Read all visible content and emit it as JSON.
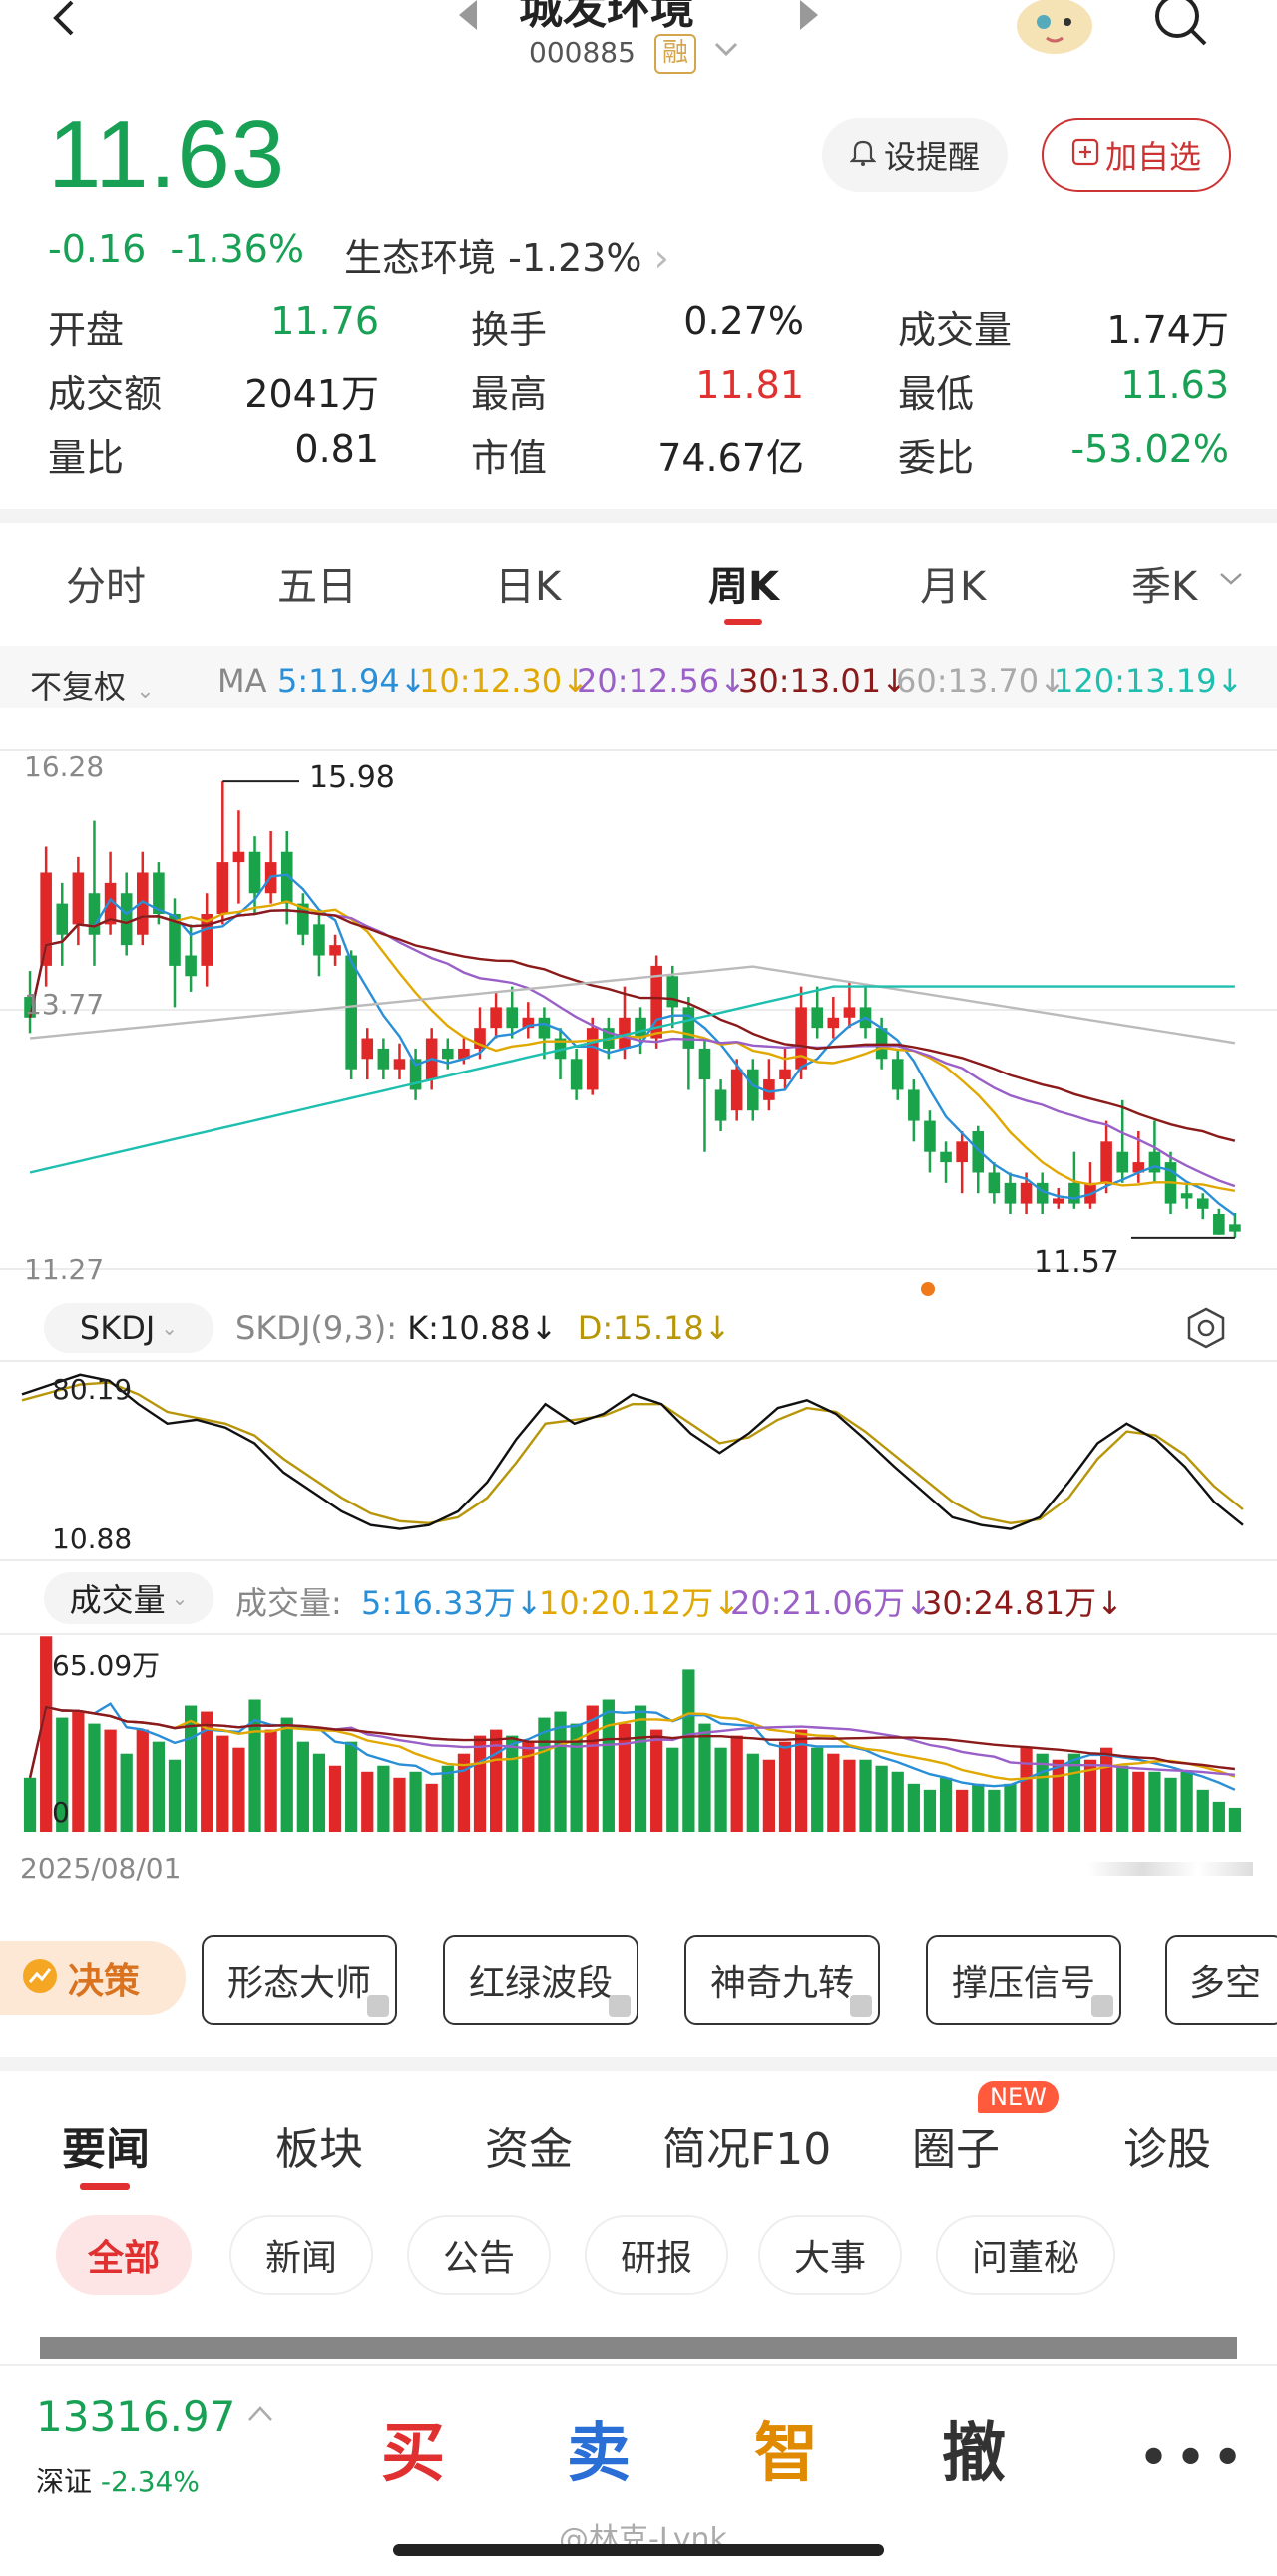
{
  "header": {
    "title": "城发环境",
    "code": "000885",
    "badge": "融"
  },
  "quote": {
    "price": "11.63",
    "change": "-0.16",
    "change_pct": "-1.36%",
    "sector_name": "生态环境",
    "sector_pct": "-1.23%",
    "remind_label": "设提醒",
    "fav_label": "加自选"
  },
  "stats": [
    {
      "label": "开盘",
      "value": "11.76",
      "color": "#18a155"
    },
    {
      "label": "换手",
      "value": "0.27%",
      "color": "#222222"
    },
    {
      "label": "成交量",
      "value": "1.74万",
      "color": "#222222"
    },
    {
      "label": "成交额",
      "value": "2041万",
      "color": "#222222"
    },
    {
      "label": "最高",
      "value": "11.81",
      "color": "#e03030"
    },
    {
      "label": "最低",
      "value": "11.63",
      "color": "#18a155"
    },
    {
      "label": "量比",
      "value": "0.81",
      "color": "#222222"
    },
    {
      "label": "市值",
      "value": "74.67亿",
      "color": "#222222"
    },
    {
      "label": "委比",
      "value": "-53.02%",
      "color": "#18a155"
    }
  ],
  "chart_tabs": [
    "分时",
    "五日",
    "日K",
    "周K",
    "月K",
    "季K"
  ],
  "active_tab": "周K",
  "ma_bar": {
    "mode": "不复权",
    "label": "MA",
    "items": [
      {
        "text": "5:11.94↓",
        "color": "#2a8fd6"
      },
      {
        "text": "10:12.30↓",
        "color": "#e0a800"
      },
      {
        "text": "20:12.56↓",
        "color": "#9a60c8"
      },
      {
        "text": "30:13.01↓",
        "color": "#8b1a1a"
      },
      {
        "text": "60:13.70↓",
        "color": "#aaaaaa"
      },
      {
        "text": "120:13.19↓",
        "color": "#1fbfb0"
      }
    ]
  },
  "kline": {
    "y_top": "16.28",
    "y_mid": "13.77",
    "y_bottom": "11.27",
    "high_label": "15.98",
    "low_label": "11.57"
  },
  "skdj": {
    "name": "SKDJ",
    "params": "SKDJ(9,3):",
    "k": "K:10.88↓",
    "d": "D:15.18↓",
    "y_top": "80.19",
    "y_bottom": "10.88"
  },
  "volume": {
    "name": "成交量",
    "prefix": "成交量:",
    "items": [
      {
        "text": "5:16.33万↓",
        "color": "#2a8fd6"
      },
      {
        "text": "10:20.12万↓",
        "color": "#e0a800"
      },
      {
        "text": "20:21.06万↓",
        "color": "#9a60c8"
      },
      {
        "text": "30:24.81万↓",
        "color": "#8b1a1a"
      }
    ],
    "y_top": "65.09万",
    "y_bottom": "0",
    "date": "2025/08/01"
  },
  "decision": {
    "label": "决策",
    "buttons": [
      "形态大师",
      "红绿波段",
      "神奇九转",
      "撑压信号",
      "多空"
    ]
  },
  "news_tabs": [
    "要闻",
    "板块",
    "资金",
    "简况F10",
    "圈子",
    "诊股"
  ],
  "news_badge": "NEW",
  "filter_pills": [
    "全部",
    "新闻",
    "公告",
    "研报",
    "大事",
    "问董秘"
  ],
  "index": {
    "value": "13316.97",
    "name": "深证",
    "pct": "-2.34%"
  },
  "actions": [
    "买",
    "卖",
    "智",
    "撤"
  ],
  "watermark": "@林克-Lynk",
  "chart_data": {
    "type": "candlestick",
    "ylim": [
      11.27,
      16.28
    ],
    "ohlc": [
      [
        13.9,
        13.7,
        14.15,
        13.55
      ],
      [
        14.2,
        15.1,
        15.35,
        14.0
      ],
      [
        14.8,
        14.5,
        15.0,
        14.2
      ],
      [
        14.6,
        15.1,
        15.25,
        14.4
      ],
      [
        14.9,
        14.5,
        15.6,
        14.2
      ],
      [
        14.6,
        15.0,
        15.3,
        14.5
      ],
      [
        14.9,
        14.4,
        15.1,
        14.3
      ],
      [
        14.5,
        15.1,
        15.3,
        14.4
      ],
      [
        15.1,
        14.7,
        15.2,
        14.6
      ],
      [
        14.7,
        14.2,
        14.85,
        13.8
      ],
      [
        14.3,
        14.1,
        14.6,
        13.95
      ],
      [
        14.2,
        14.7,
        14.9,
        14.0
      ],
      [
        14.7,
        15.2,
        15.98,
        14.6
      ],
      [
        15.2,
        15.3,
        15.7,
        14.8
      ],
      [
        15.3,
        14.9,
        15.45,
        14.7
      ],
      [
        14.9,
        15.2,
        15.5,
        14.8
      ],
      [
        15.3,
        14.8,
        15.5,
        14.6
      ],
      [
        14.8,
        14.5,
        14.9,
        14.4
      ],
      [
        14.6,
        14.3,
        14.7,
        14.1
      ],
      [
        14.3,
        14.4,
        14.5,
        14.2
      ],
      [
        14.3,
        13.2,
        14.35,
        13.1
      ],
      [
        13.3,
        13.5,
        13.6,
        13.1
      ],
      [
        13.4,
        13.2,
        13.5,
        13.1
      ],
      [
        13.2,
        13.3,
        13.45,
        13.1
      ],
      [
        13.3,
        13.0,
        13.4,
        12.9
      ],
      [
        13.1,
        13.5,
        13.6,
        13.0
      ],
      [
        13.4,
        13.3,
        13.5,
        13.2
      ],
      [
        13.3,
        13.4,
        13.5,
        13.25
      ],
      [
        13.4,
        13.6,
        13.8,
        13.3
      ],
      [
        13.6,
        13.8,
        13.95,
        13.5
      ],
      [
        13.8,
        13.6,
        14.0,
        13.5
      ],
      [
        13.6,
        13.7,
        13.85,
        13.5
      ],
      [
        13.7,
        13.5,
        13.8,
        13.3
      ],
      [
        13.5,
        13.3,
        13.6,
        13.1
      ],
      [
        13.3,
        13.0,
        13.4,
        12.9
      ],
      [
        13.0,
        13.6,
        13.7,
        12.95
      ],
      [
        13.6,
        13.4,
        13.7,
        13.3
      ],
      [
        13.4,
        13.7,
        14.0,
        13.3
      ],
      [
        13.7,
        13.5,
        13.8,
        13.35
      ],
      [
        13.5,
        14.2,
        14.3,
        13.4
      ],
      [
        14.1,
        13.8,
        14.2,
        13.6
      ],
      [
        13.8,
        13.4,
        13.9,
        13.0
      ],
      [
        13.4,
        13.1,
        13.5,
        12.4
      ],
      [
        13.0,
        12.7,
        13.1,
        12.6
      ],
      [
        12.8,
        13.2,
        13.3,
        12.7
      ],
      [
        13.2,
        12.8,
        13.3,
        12.7
      ],
      [
        12.9,
        13.1,
        13.3,
        12.8
      ],
      [
        13.1,
        13.2,
        13.4,
        13.0
      ],
      [
        13.2,
        13.8,
        14.0,
        13.1
      ],
      [
        13.8,
        13.6,
        14.0,
        13.5
      ],
      [
        13.6,
        13.7,
        13.9,
        13.5
      ],
      [
        13.7,
        13.8,
        14.05,
        13.6
      ],
      [
        13.8,
        13.6,
        14.0,
        13.5
      ],
      [
        13.6,
        13.3,
        13.7,
        13.2
      ],
      [
        13.3,
        13.0,
        13.4,
        12.9
      ],
      [
        13.0,
        12.7,
        13.1,
        12.5
      ],
      [
        12.7,
        12.4,
        12.8,
        12.2
      ],
      [
        12.4,
        12.3,
        12.5,
        12.1
      ],
      [
        12.3,
        12.5,
        12.6,
        12.0
      ],
      [
        12.6,
        12.2,
        12.65,
        12.0
      ],
      [
        12.2,
        12.0,
        12.3,
        11.9
      ],
      [
        12.1,
        11.9,
        12.2,
        11.8
      ],
      [
        11.9,
        12.1,
        12.2,
        11.8
      ],
      [
        12.1,
        11.9,
        12.2,
        11.8
      ],
      [
        11.9,
        11.95,
        12.05,
        11.85
      ],
      [
        12.1,
        11.9,
        12.4,
        11.85
      ],
      [
        11.9,
        12.1,
        12.3,
        11.85
      ],
      [
        12.1,
        12.5,
        12.7,
        12.0
      ],
      [
        12.4,
        12.2,
        12.9,
        12.1
      ],
      [
        12.2,
        12.3,
        12.6,
        12.1
      ],
      [
        12.4,
        12.2,
        12.7,
        12.1
      ],
      [
        12.3,
        11.9,
        12.4,
        11.8
      ],
      [
        12.0,
        11.95,
        12.1,
        11.85
      ],
      [
        11.95,
        11.85,
        12.0,
        11.75
      ],
      [
        11.8,
        11.6,
        11.85,
        11.6
      ],
      [
        11.7,
        11.63,
        11.81,
        11.57
      ]
    ]
  }
}
